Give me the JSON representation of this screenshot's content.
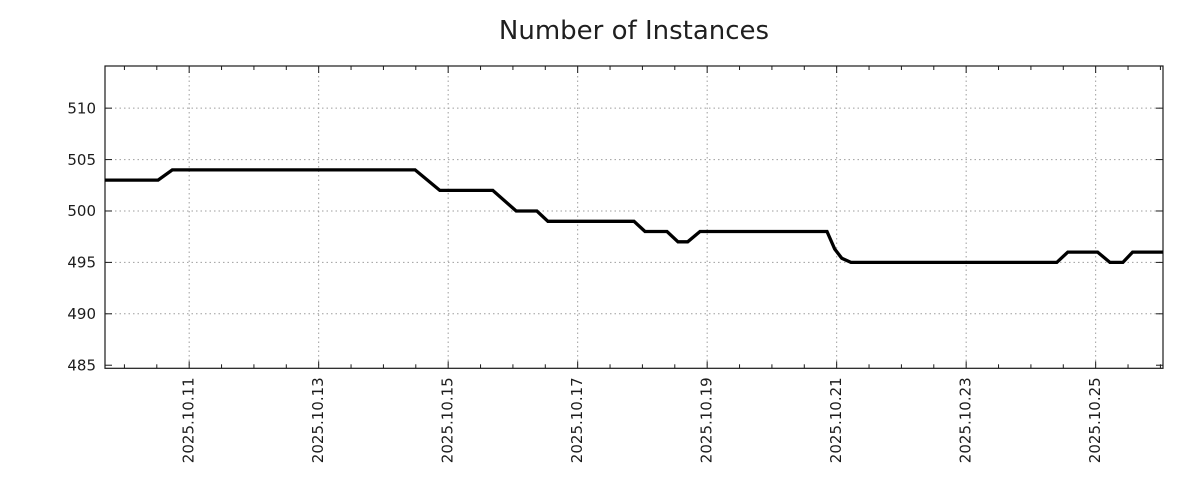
{
  "page": {
    "background": "#ffffff"
  },
  "colors": {
    "line": "#000000",
    "grid": "#9e9e9e",
    "axis": "#1a1a1a",
    "text": "#1c1c1c",
    "background": "#ffffff"
  },
  "chart_data": {
    "type": "line",
    "title": "Number of Instances",
    "xlabel": "",
    "ylabel": "",
    "grid": true,
    "legend": "none",
    "x_axis": {
      "unit": "date",
      "xlim_days": [
        9.7,
        26.04
      ],
      "major_ticks": [
        {
          "day": 11,
          "label": "2025.10.11"
        },
        {
          "day": 13,
          "label": "2025.10.13"
        },
        {
          "day": 15,
          "label": "2025.10.15"
        },
        {
          "day": 17,
          "label": "2025.10.17"
        },
        {
          "day": 19,
          "label": "2025.10.19"
        },
        {
          "day": 21,
          "label": "2025.10.21"
        },
        {
          "day": 23,
          "label": "2025.10.23"
        },
        {
          "day": 25,
          "label": "2025.10.25"
        }
      ],
      "minor_tick_interval_days": 0.5
    },
    "y_axis": {
      "ylim": [
        484.7,
        514.1
      ],
      "ticks": [
        485,
        490,
        495,
        500,
        505,
        510
      ]
    },
    "series": [
      {
        "name": "instances",
        "color": "#000000",
        "line_width": 3.3,
        "points": [
          [
            9.7,
            503
          ],
          [
            10.52,
            503
          ],
          [
            10.74,
            504
          ],
          [
            14.49,
            504
          ],
          [
            14.87,
            502
          ],
          [
            15.69,
            502
          ],
          [
            16.05,
            500
          ],
          [
            16.37,
            500
          ],
          [
            16.54,
            499
          ],
          [
            17.87,
            499
          ],
          [
            18.04,
            498
          ],
          [
            18.38,
            498
          ],
          [
            18.55,
            497
          ],
          [
            18.7,
            497
          ],
          [
            18.89,
            498
          ],
          [
            20.85,
            498
          ],
          [
            20.97,
            496.3
          ],
          [
            21.08,
            495.4
          ],
          [
            21.22,
            495
          ],
          [
            24.4,
            495
          ],
          [
            24.57,
            496
          ],
          [
            25.03,
            496
          ],
          [
            25.22,
            495
          ],
          [
            25.42,
            495
          ],
          [
            25.57,
            496
          ],
          [
            26.04,
            496
          ]
        ]
      }
    ]
  }
}
